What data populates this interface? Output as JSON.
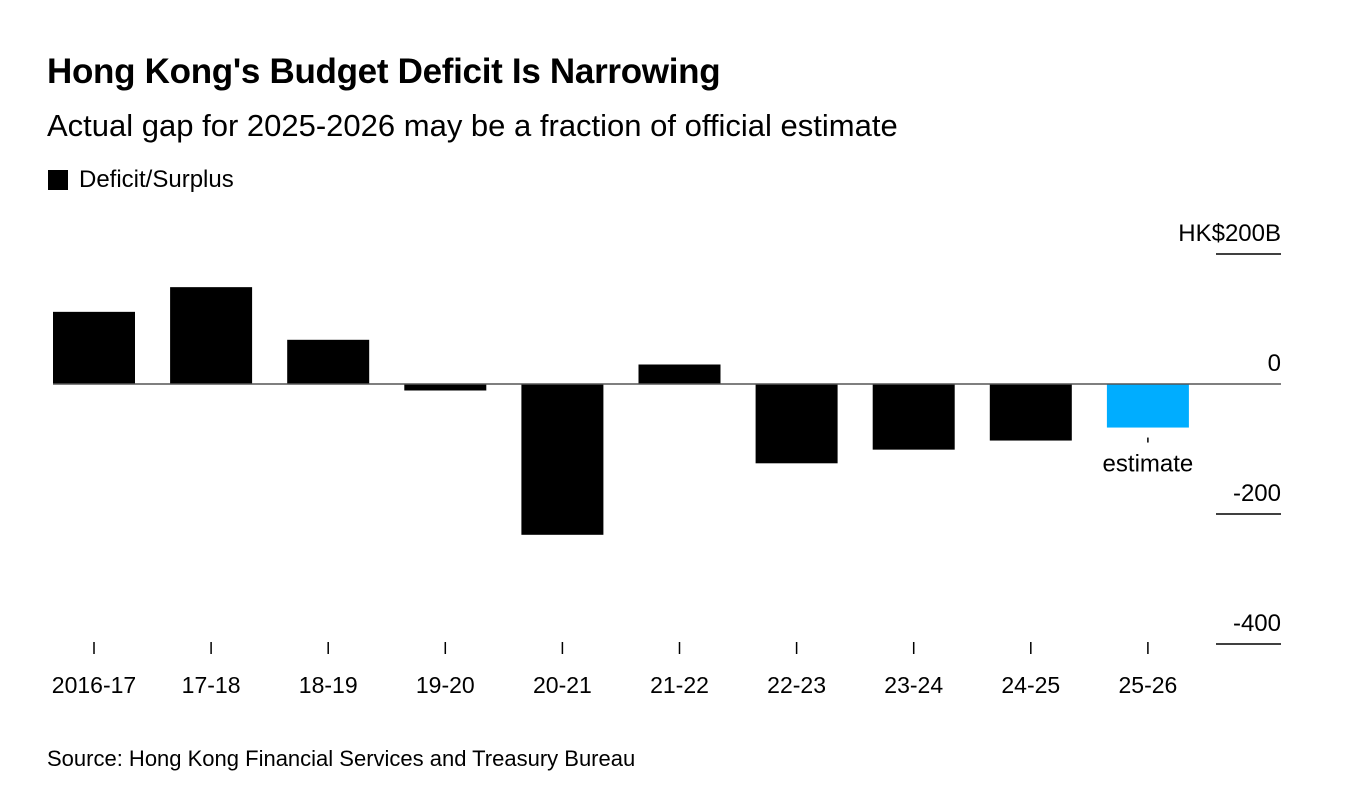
{
  "chart_data": {
    "type": "bar",
    "title": "Hong Kong's Budget Deficit Is Narrowing",
    "subtitle": "Actual gap for 2025-2026 may be a fraction of official estimate",
    "legend": [
      {
        "label": "Deficit/Surplus",
        "color": "#000000"
      }
    ],
    "legend_position": "top-left",
    "categories": [
      "2016-17",
      "17-18",
      "18-19",
      "19-20",
      "20-21",
      "21-22",
      "22-23",
      "23-24",
      "24-25",
      "25-26"
    ],
    "series": [
      {
        "name": "Deficit/Surplus",
        "values": [
          111,
          149,
          68,
          -10,
          -232,
          30,
          -122,
          -101,
          -87,
          -67
        ],
        "colors": [
          "#000000",
          "#000000",
          "#000000",
          "#000000",
          "#000000",
          "#000000",
          "#000000",
          "#000000",
          "#000000",
          "#00adff"
        ]
      }
    ],
    "annotations": [
      {
        "category": "25-26",
        "text": "estimate"
      }
    ],
    "yaxis": {
      "ticks": [
        200,
        0,
        -200,
        -400
      ],
      "tick_labels": [
        "HK$200B",
        "0",
        "-200",
        "-400"
      ],
      "position": "right"
    },
    "ylim": [
      -400,
      200
    ],
    "xlabel": "",
    "ylabel": "HK$ billions",
    "grid": false,
    "source": "Source: Hong Kong Financial Services and Treasury Bureau"
  }
}
